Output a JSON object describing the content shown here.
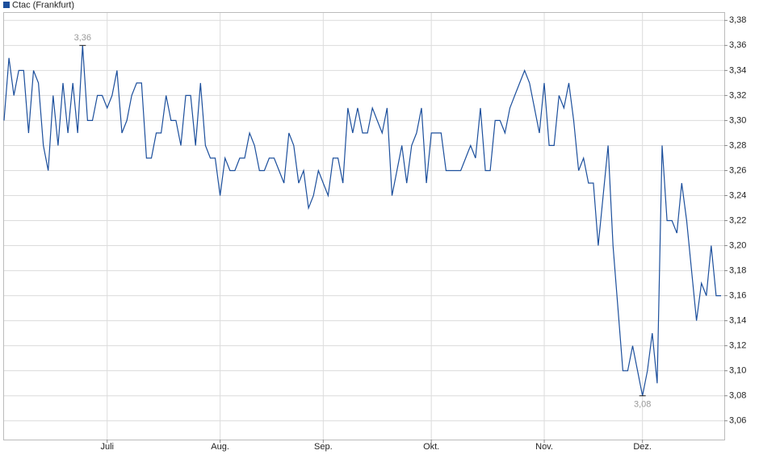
{
  "chart_data": {
    "type": "line",
    "categories": [
      null,
      null,
      null,
      null,
      null,
      null,
      null,
      null,
      null,
      null,
      null,
      null,
      null,
      null,
      null,
      null,
      null,
      null,
      null,
      null,
      null,
      "Juli",
      null,
      null,
      null,
      null,
      null,
      null,
      null,
      null,
      null,
      null,
      null,
      null,
      null,
      null,
      null,
      null,
      null,
      null,
      null,
      null,
      null,
      null,
      "Aug.",
      null,
      null,
      null,
      null,
      null,
      null,
      null,
      null,
      null,
      null,
      null,
      null,
      null,
      null,
      null,
      null,
      null,
      null,
      null,
      null,
      "Sep.",
      null,
      null,
      null,
      null,
      null,
      null,
      null,
      null,
      null,
      null,
      null,
      null,
      null,
      null,
      null,
      null,
      null,
      null,
      null,
      null,
      null,
      "Okt.",
      null,
      null,
      null,
      null,
      null,
      null,
      null,
      null,
      null,
      null,
      null,
      null,
      null,
      null,
      null,
      null,
      null,
      null,
      null,
      null,
      null,
      null,
      "Nov.",
      null,
      null,
      null,
      null,
      null,
      null,
      null,
      null,
      null,
      null,
      null,
      null,
      null,
      null,
      null,
      null,
      null,
      null,
      null,
      "Dez.",
      null,
      null,
      null,
      null,
      null,
      null,
      null,
      null,
      null,
      null,
      null,
      null,
      null,
      null,
      null,
      null
    ],
    "series": [
      {
        "name": "Ctac (Frankfurt)",
        "color": "#1c4f9c",
        "values": [
          3.3,
          3.35,
          3.32,
          3.34,
          3.34,
          3.29,
          3.34,
          3.33,
          3.28,
          3.26,
          3.32,
          3.28,
          3.33,
          3.29,
          3.33,
          3.29,
          3.36,
          3.3,
          3.3,
          3.32,
          3.32,
          3.31,
          3.32,
          3.34,
          3.29,
          3.3,
          3.32,
          3.33,
          3.33,
          3.27,
          3.27,
          3.29,
          3.29,
          3.32,
          3.3,
          3.3,
          3.28,
          3.32,
          3.32,
          3.28,
          3.33,
          3.28,
          3.27,
          3.27,
          3.24,
          3.27,
          3.26,
          3.26,
          3.27,
          3.27,
          3.29,
          3.28,
          3.26,
          3.26,
          3.27,
          3.27,
          3.26,
          3.25,
          3.29,
          3.28,
          3.25,
          3.26,
          3.23,
          3.24,
          3.26,
          3.25,
          3.24,
          3.27,
          3.27,
          3.25,
          3.31,
          3.29,
          3.31,
          3.29,
          3.29,
          3.31,
          3.3,
          3.29,
          3.31,
          3.24,
          3.26,
          3.28,
          3.25,
          3.28,
          3.29,
          3.31,
          3.25,
          3.29,
          3.29,
          3.29,
          3.26,
          3.26,
          3.26,
          3.26,
          3.27,
          3.28,
          3.27,
          3.31,
          3.26,
          3.26,
          3.3,
          3.3,
          3.29,
          3.31,
          3.32,
          3.33,
          3.34,
          3.33,
          3.31,
          3.29,
          3.33,
          3.28,
          3.28,
          3.32,
          3.31,
          3.33,
          3.3,
          3.26,
          3.27,
          3.25,
          3.25,
          3.2,
          3.24,
          3.28,
          3.2,
          3.15,
          3.1,
          3.1,
          3.12,
          3.1,
          3.08,
          3.1,
          3.13,
          3.09,
          3.28,
          3.22,
          3.22,
          3.21,
          3.25,
          3.22,
          3.18,
          3.14,
          3.17,
          3.16,
          3.2,
          3.16,
          3.16
        ]
      }
    ],
    "annotations": [
      {
        "value": 3.36,
        "label": "3,36"
      },
      {
        "value": 3.08,
        "label": "3,08"
      }
    ],
    "ylim": [
      3.045,
      3.386
    ],
    "yticks": [
      {
        "value": 3.06,
        "label": "3,06"
      },
      {
        "value": 3.08,
        "label": "3,08"
      },
      {
        "value": 3.1,
        "label": "3,10"
      },
      {
        "value": 3.12,
        "label": "3,12"
      },
      {
        "value": 3.14,
        "label": "3,14"
      },
      {
        "value": 3.16,
        "label": "3,16"
      },
      {
        "value": 3.18,
        "label": "3,18"
      },
      {
        "value": 3.2,
        "label": "3,20"
      },
      {
        "value": 3.22,
        "label": "3,22"
      },
      {
        "value": 3.24,
        "label": "3,24"
      },
      {
        "value": 3.26,
        "label": "3,26"
      },
      {
        "value": 3.28,
        "label": "3,28"
      },
      {
        "value": 3.3,
        "label": "3,30"
      },
      {
        "value": 3.32,
        "label": "3,32"
      },
      {
        "value": 3.34,
        "label": "3,34"
      },
      {
        "value": 3.36,
        "label": "3,36"
      },
      {
        "value": 3.38,
        "label": "3,38"
      }
    ],
    "grid": true,
    "legend": "top-left"
  }
}
